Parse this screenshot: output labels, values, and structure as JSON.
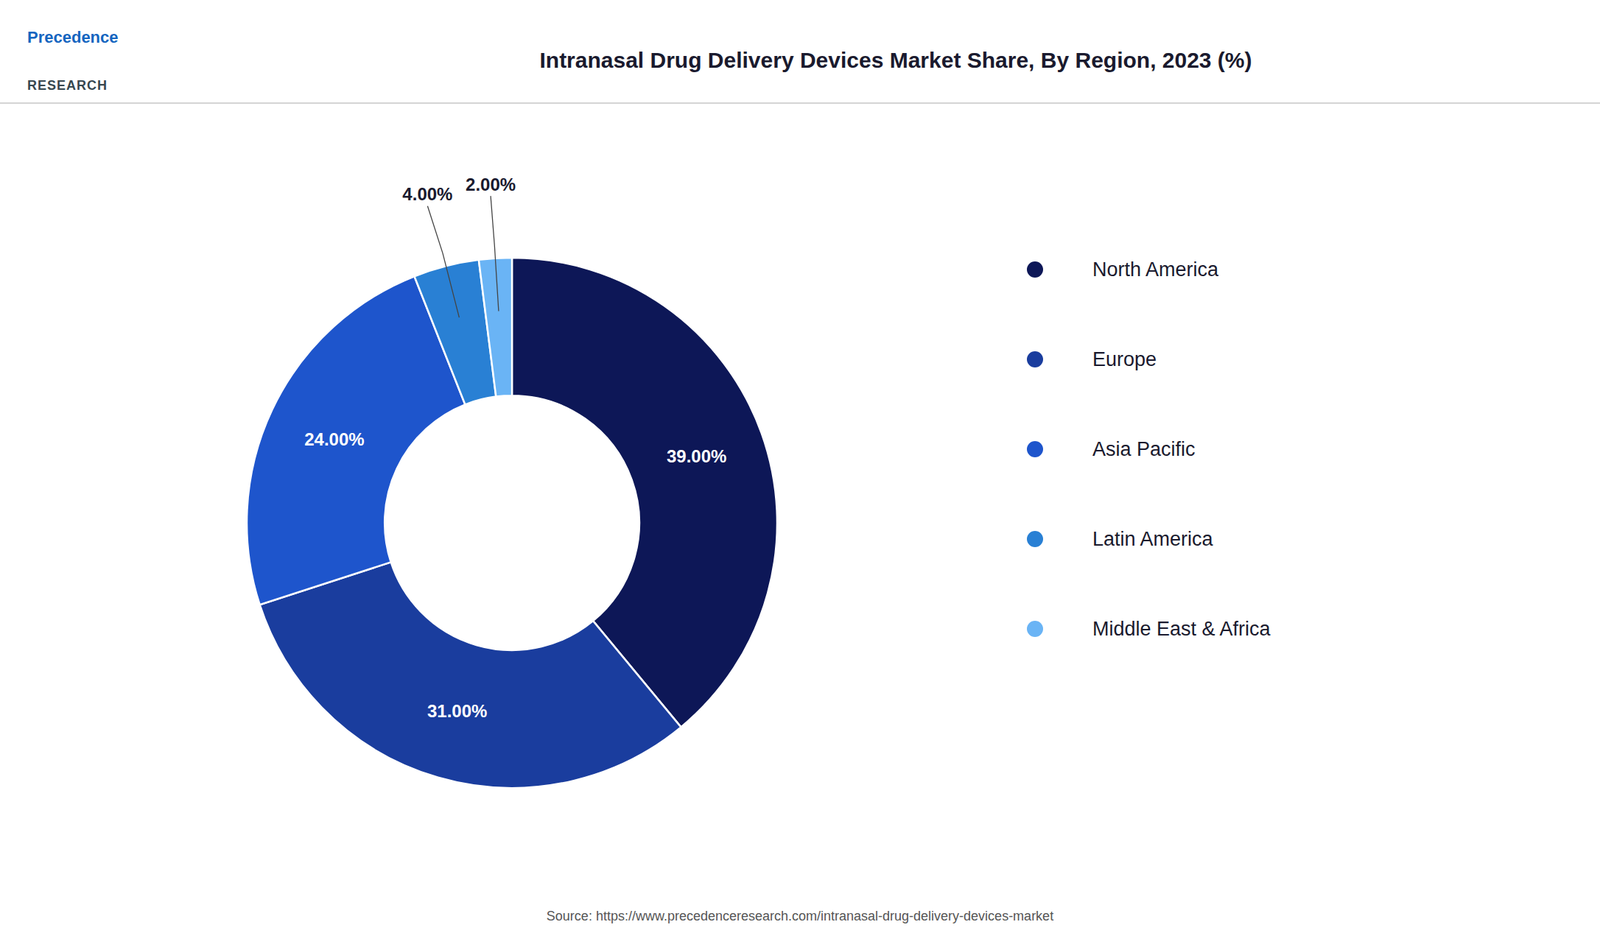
{
  "chart_data": {
    "type": "donut",
    "title": "Intranasal Drug Delivery Devices Market Share, By Region, 2023 (%)",
    "categories": [
      "North America",
      "Europe",
      "Asia Pacific",
      "Latin America",
      "Middle East & Africa"
    ],
    "values": [
      39.0,
      31.0,
      24.0,
      4.0,
      2.0
    ],
    "value_labels": [
      "39.00%",
      "31.00%",
      "24.00%",
      "4.00%",
      "2.00%"
    ],
    "colors": [
      "#0d1757",
      "#1a3d9e",
      "#1e55cc",
      "#2980d4",
      "#6ab4f5"
    ],
    "data_labels": true,
    "legend": "right",
    "annotations": [
      "Precedence",
      "RESEARCH",
      "Source: https://www.precedenceresearch.com/intranasal-drug-delivery-devices-market"
    ]
  }
}
